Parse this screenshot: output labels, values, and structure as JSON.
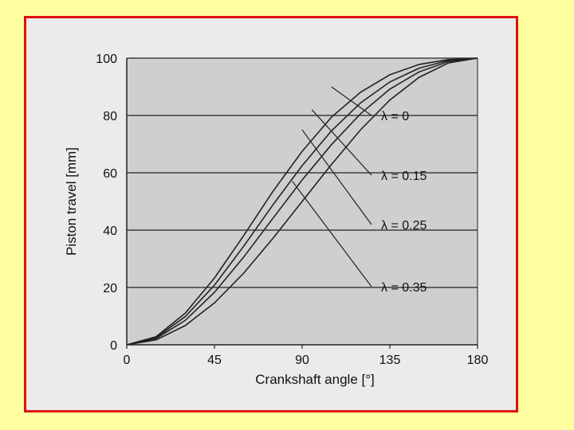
{
  "colors": {
    "background": "#FFFFA0",
    "frame_border": "#E01010",
    "paper": "#EBEBEB",
    "ink": "#222222"
  },
  "chart_data": {
    "type": "line",
    "title": "",
    "xlabel": "Crankshaft angle [°]",
    "ylabel": "Piston travel [mm]",
    "xlim": [
      0,
      180
    ],
    "ylim": [
      0,
      100
    ],
    "xticks": [
      0,
      45,
      90,
      135,
      180
    ],
    "yticks": [
      0,
      20,
      40,
      60,
      80,
      100
    ],
    "grid": "horizontal",
    "series": [
      {
        "name": "λ = 0",
        "x": [
          0,
          15,
          30,
          45,
          60,
          75,
          90,
          105,
          120,
          135,
          150,
          165,
          180
        ],
        "values": [
          0,
          1.7,
          6.7,
          14.6,
          25.0,
          37.1,
          50.0,
          62.9,
          75.0,
          85.4,
          93.3,
          98.3,
          100
        ]
      },
      {
        "name": "λ = 0.15",
        "x": [
          0,
          15,
          30,
          45,
          60,
          75,
          90,
          105,
          120,
          135,
          150,
          165,
          180
        ],
        "values": [
          0,
          2.2,
          8.5,
          18.3,
          30.6,
          44.1,
          57.5,
          69.8,
          80.6,
          89.2,
          95.2,
          98.8,
          100
        ]
      },
      {
        "name": "λ = 0.25",
        "x": [
          0,
          15,
          30,
          45,
          60,
          75,
          90,
          105,
          120,
          135,
          150,
          165,
          180
        ],
        "values": [
          0,
          2.5,
          9.8,
          20.8,
          34.4,
          48.8,
          62.5,
          74.6,
          84.4,
          91.7,
          96.5,
          99.2,
          100
        ]
      },
      {
        "name": "λ = 0.35",
        "x": [
          0,
          15,
          30,
          45,
          60,
          75,
          90,
          105,
          120,
          135,
          150,
          165,
          180
        ],
        "values": [
          0,
          2.8,
          11.0,
          23.3,
          38.1,
          53.5,
          67.5,
          79.4,
          88.1,
          94.2,
          97.8,
          99.5,
          100
        ]
      }
    ]
  }
}
